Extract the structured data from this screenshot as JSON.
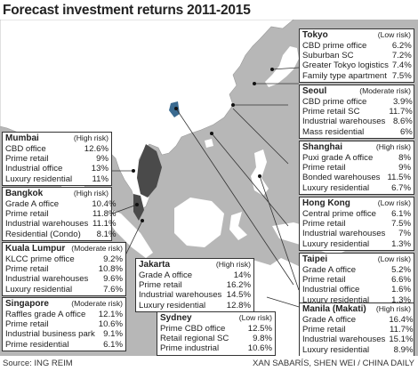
{
  "title": "Forecast investment returns 2011-2015",
  "footer": {
    "source": "Source: ING REIM",
    "credit": "XAN SABARÍS, SHEN WEI / CHINA DAILY"
  },
  "colors": {
    "sea": "#b7b7b7",
    "land": "#ffffff",
    "highlight_land": "#4a4a4a",
    "box_border": "#333333"
  },
  "cities": [
    {
      "id": "tokyo",
      "name": "Tokyo",
      "risk": "(Low risk)",
      "rows": [
        [
          "CBD prime office",
          "6.2%"
        ],
        [
          "Suburban SC",
          "7.2%"
        ],
        [
          "Greater Tokyo logistics",
          "7.4%"
        ],
        [
          "Family type apartment",
          "7.5%"
        ]
      ]
    },
    {
      "id": "seoul",
      "name": "Seoul",
      "risk": "(Moderate risk)",
      "rows": [
        [
          "CBD prime office",
          "3.9%"
        ],
        [
          "Prime retail SC",
          "11.7%"
        ],
        [
          "Industrial warehouses",
          "8.6%"
        ],
        [
          "Mass residential",
          "6%"
        ]
      ]
    },
    {
      "id": "shanghai",
      "name": "Shanghai",
      "risk": "(High risk)",
      "rows": [
        [
          "Puxi grade A office",
          "8%"
        ],
        [
          "Prime retail",
          "9%"
        ],
        [
          "Bonded warehouses",
          "11.5%"
        ],
        [
          "Luxury residential",
          "6.7%"
        ]
      ]
    },
    {
      "id": "hongkong",
      "name": "Hong Kong",
      "risk": "(Low risk)",
      "rows": [
        [
          "Central prime office",
          "6.1%"
        ],
        [
          "Prime retail",
          "7.5%"
        ],
        [
          "Industrial warehouses",
          "7%"
        ],
        [
          "Luxury residential",
          "1.3%"
        ]
      ]
    },
    {
      "id": "taipei",
      "name": "Taipei",
      "risk": "(Low risk)",
      "rows": [
        [
          "Grade A office",
          "5.2%"
        ],
        [
          "Prime retail",
          "6.6%"
        ],
        [
          "Industrial office",
          "1.6%"
        ],
        [
          "Luxury residential",
          "1.3%"
        ]
      ]
    },
    {
      "id": "manila",
      "name": "Manila (Makati)",
      "risk": "(High risk)",
      "rows": [
        [
          "Grade A office",
          "16.4%"
        ],
        [
          "Prime retail",
          "11.7%"
        ],
        [
          "Industrial warehouses",
          "15.1%"
        ],
        [
          "Luxury residential",
          "8.9%"
        ]
      ]
    },
    {
      "id": "mumbai",
      "name": "Mumbai",
      "risk": "(High risk)",
      "rows": [
        [
          "CBD office",
          "12.6%"
        ],
        [
          "Prime retail",
          "9%"
        ],
        [
          "Industrial office",
          "13%"
        ],
        [
          "Luxury residential",
          "11%"
        ]
      ]
    },
    {
      "id": "bangkok",
      "name": "Bangkok",
      "risk": "(High risk)",
      "rows": [
        [
          "Grade A office",
          "10.4%"
        ],
        [
          "Prime retail",
          "11.8%"
        ],
        [
          "Industrial warehouses",
          "11.1%"
        ],
        [
          "Residential (Condo)",
          "8.1%"
        ]
      ]
    },
    {
      "id": "kualalumpur",
      "name": "Kuala Lumpur",
      "risk": "(Moderate risk)",
      "rows": [
        [
          "KLCC prime office",
          "9.2%"
        ],
        [
          "Prime retail",
          "10.8%"
        ],
        [
          "Industrial warehouses",
          "9.6%"
        ],
        [
          "Luxury residential",
          "7.6%"
        ]
      ]
    },
    {
      "id": "singapore",
      "name": "Singapore",
      "risk": "(Moderate risk)",
      "rows": [
        [
          "Raffles grade A office",
          "12.1%"
        ],
        [
          "Prime retail",
          "10.6%"
        ],
        [
          "Industrial business park",
          "9.1%"
        ],
        [
          "Prime residential",
          "6.1%"
        ]
      ]
    },
    {
      "id": "jakarta",
      "name": "Jakarta",
      "risk": "(High risk)",
      "rows": [
        [
          "Grade A office",
          "14%"
        ],
        [
          "Prime retail",
          "16.2%"
        ],
        [
          "Industrial warehouses",
          "14.5%"
        ],
        [
          "Luxury residential",
          "12.8%"
        ]
      ]
    },
    {
      "id": "sydney",
      "name": "Sydney",
      "risk": "(Low risk)",
      "rows": [
        [
          "Prime CBD office",
          "12.5%"
        ],
        [
          "Retail regional SC",
          "9.8%"
        ],
        [
          "Prime industrial",
          "10.6%"
        ]
      ]
    }
  ]
}
